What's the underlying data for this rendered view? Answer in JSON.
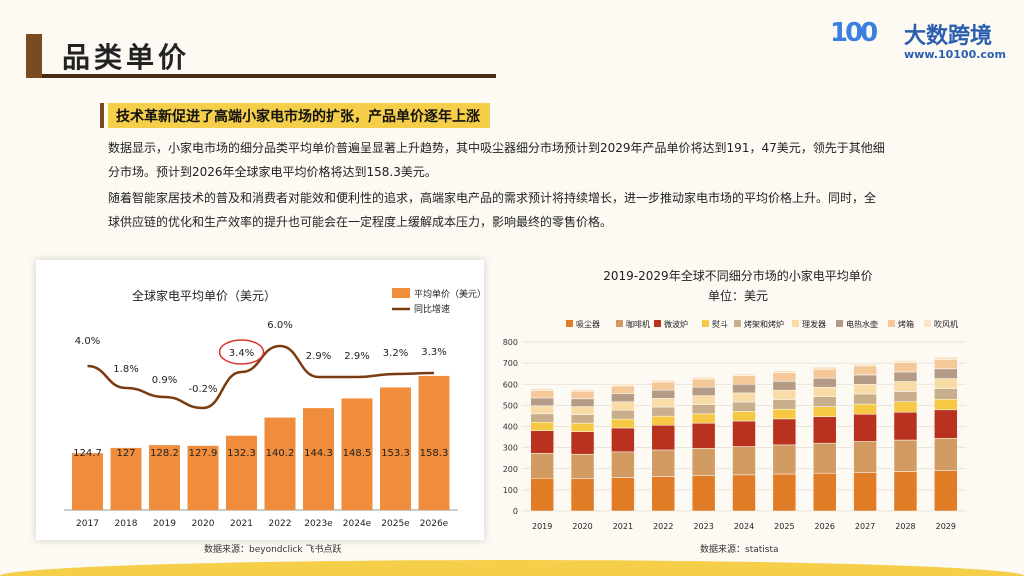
{
  "page": {
    "title": "品类单价",
    "highlight": "技术革新促进了高端小家电市场的扩张，产品单价逐年上涨",
    "para1_line1": "数据显示，小家电市场的细分品类平均单价普遍呈显著上升趋势，其中吸尘器细分市场预计到2029年产品单价将达到191，47美元，领先于其他细",
    "para1_line2": "分市场。预计到2026年全球家电平均价格将达到158.3美元。",
    "para2_line1": "随着智能家居技术的普及和消费者对能效和便利性的追求，高端家电产品的需求预计将持续增长，进一步推动家电市场的平均价格上升。同时，全",
    "para2_line2": "球供应链的优化和生产效率的提升也可能会在一定程度上缓解成本压力，影响最终的零售价格。",
    "source_left": "数据来源：beyondclick 飞书点跃",
    "source_right": "数据来源：statista"
  },
  "logo": {
    "mark": "100",
    "brand": "大数跨境",
    "url": "www.10100.com"
  },
  "colors": {
    "bar": "#ef8d3c",
    "line": "#7a3b10",
    "accent": "#f5cf4a",
    "highlight_circle": "#d9362b"
  },
  "chart_data": [
    {
      "type": "bar",
      "title": "全球家电平均单价（美元）",
      "categories": [
        "2017",
        "2018",
        "2019",
        "2020",
        "2021",
        "2022",
        "2023e",
        "2024e",
        "2025e",
        "2026e"
      ],
      "series": [
        {
          "name": "平均单价（美元）",
          "type": "bar",
          "values": [
            124.7,
            127,
            128.2,
            127.9,
            132.3,
            140.2,
            144.3,
            148.5,
            153.3,
            158.3
          ]
        },
        {
          "name": "同比增速",
          "type": "line",
          "values": [
            4.0,
            1.8,
            0.9,
            -0.2,
            3.4,
            6.0,
            2.9,
            2.9,
            3.2,
            3.3
          ],
          "labels": [
            "4.0%",
            "1.8%",
            "0.9%",
            "-0.2%",
            "3.4%",
            "6.0%",
            "2.9%",
            "2.9%",
            "3.2%",
            "3.3%"
          ]
        }
      ],
      "highlighted_category": "2021"
    },
    {
      "type": "bar",
      "stacked": true,
      "title": "2019-2029年全球不同细分市场的小家电平均单价",
      "subtitle": "单位：美元",
      "categories": [
        "2019",
        "2020",
        "2021",
        "2022",
        "2023",
        "2024",
        "2025",
        "2026",
        "2027",
        "2028",
        "2029"
      ],
      "ylim": [
        0,
        800
      ],
      "yticks": [
        0,
        100,
        200,
        300,
        400,
        500,
        600,
        700,
        800
      ],
      "series": [
        {
          "name": "吸尘器",
          "color": "#e07b26",
          "values": [
            155,
            153,
            158,
            163,
            167,
            171,
            175,
            179,
            183,
            187,
            191
          ]
        },
        {
          "name": "咖啡机",
          "color": "#d29b62",
          "values": [
            118,
            116,
            122,
            126,
            130,
            134,
            138,
            142,
            146,
            149,
            153
          ]
        },
        {
          "name": "微波炉",
          "color": "#b8321f",
          "values": [
            107,
            107,
            113,
            117,
            119,
            121,
            123,
            126,
            129,
            132,
            135
          ]
        },
        {
          "name": "熨斗",
          "color": "#f7c843",
          "values": [
            40,
            40,
            42,
            43,
            44,
            45,
            46,
            47,
            48,
            49,
            50
          ]
        },
        {
          "name": "烤架和烤炉",
          "color": "#c9ae8c",
          "values": [
            40,
            40,
            42,
            43,
            44,
            45,
            46,
            47,
            48,
            49,
            50
          ]
        },
        {
          "name": "理发器",
          "color": "#f9dba6",
          "values": [
            38,
            38,
            40,
            41,
            42,
            43,
            44,
            45,
            46,
            47,
            48
          ]
        },
        {
          "name": "电热水壶",
          "color": "#b39b85",
          "values": [
            37,
            37,
            38,
            39,
            40,
            41,
            42,
            43,
            44,
            45,
            46
          ]
        },
        {
          "name": "烤箱",
          "color": "#f5c89a",
          "values": [
            36,
            36,
            37,
            38,
            39,
            40,
            41,
            42,
            43,
            44,
            45
          ]
        },
        {
          "name": "吹风机",
          "color": "#fbe4c5",
          "values": [
            9,
            9,
            10,
            10,
            10,
            10,
            10,
            11,
            11,
            11,
            12
          ]
        }
      ]
    }
  ]
}
